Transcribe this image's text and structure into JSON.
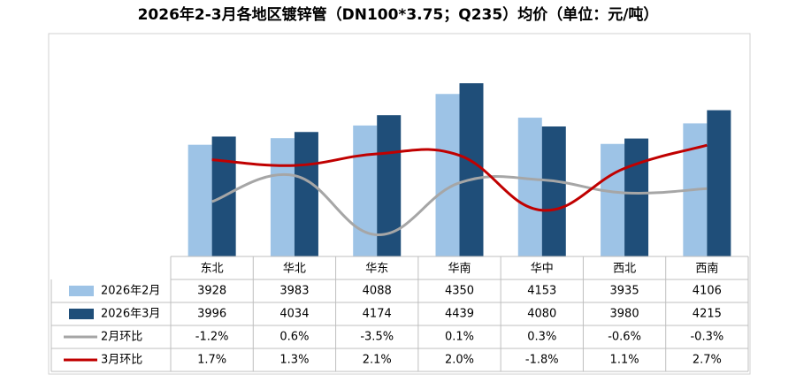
{
  "chart_data": {
    "type": "bar-line-table",
    "title": "2026年2-3月各地区镀锌管（DN100*3.75；Q235）均价（单位：元/吨）",
    "categories": [
      "东北",
      "华北",
      "华东",
      "华南",
      "华中",
      "西北",
      "西南"
    ],
    "ylim": [
      3000,
      4800
    ],
    "y2lim": [
      -5,
      10
    ],
    "series": [
      {
        "name": "2026年2月",
        "type": "bar",
        "color": "#9dc3e6",
        "values": [
          3928,
          3983,
          4088,
          4350,
          4153,
          3935,
          4106
        ]
      },
      {
        "name": "2026年3月",
        "type": "bar",
        "color": "#1f4e79",
        "values": [
          3996,
          4034,
          4174,
          4439,
          4080,
          3980,
          4215
        ]
      },
      {
        "name": "2月环比",
        "type": "line",
        "axis": "y2",
        "color": "#a6a6a6",
        "values": [
          -1.2,
          0.6,
          -3.5,
          0.1,
          0.3,
          -0.6,
          -0.3
        ],
        "value_labels": [
          "-1.2%",
          "0.6%",
          "-3.5%",
          "0.1%",
          "0.3%",
          "-0.6%",
          "-0.3%"
        ]
      },
      {
        "name": "3月环比",
        "type": "line",
        "axis": "y2",
        "color": "#c00000",
        "values": [
          1.7,
          1.3,
          2.1,
          2.0,
          -1.8,
          1.1,
          2.7
        ],
        "value_labels": [
          "1.7%",
          "1.3%",
          "2.1%",
          "2.0%",
          "-1.8%",
          "1.1%",
          "2.7%"
        ]
      }
    ]
  }
}
